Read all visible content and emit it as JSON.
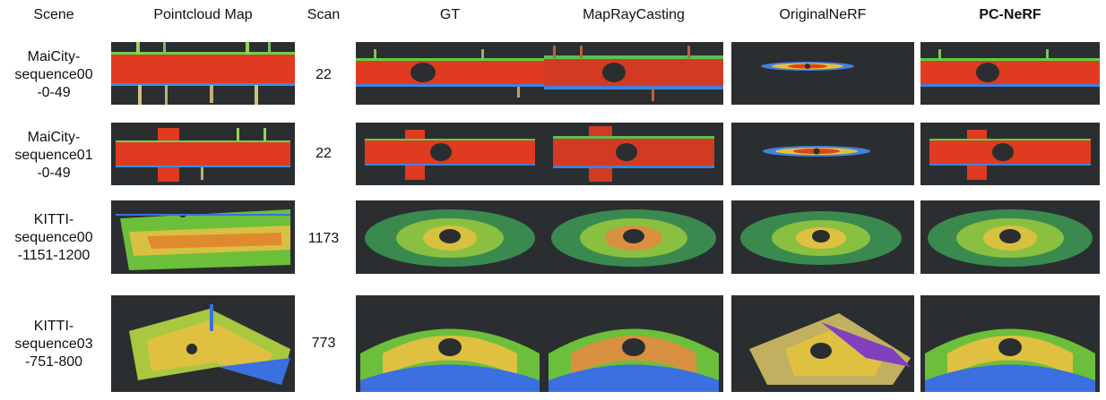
{
  "headers": {
    "scene": "Scene",
    "pointcloud_map": "Pointcloud Map",
    "scan": "Scan",
    "gt": "GT",
    "mapraycasting": "MapRayCasting",
    "originalnerf": "OriginalNeRF",
    "pcnerf": "PC-NeRF"
  },
  "rows": [
    {
      "scene": "MaiCity-\nsequence00\n-0-49",
      "scan": "22"
    },
    {
      "scene": "MaiCity-\nsequence01\n-0-49",
      "scan": "22"
    },
    {
      "scene": "KITTI-\nsequence00\n-1151-1200",
      "scan": "1173"
    },
    {
      "scene": "KITTI-\nsequence03\n-751-800",
      "scan": "773"
    }
  ]
}
